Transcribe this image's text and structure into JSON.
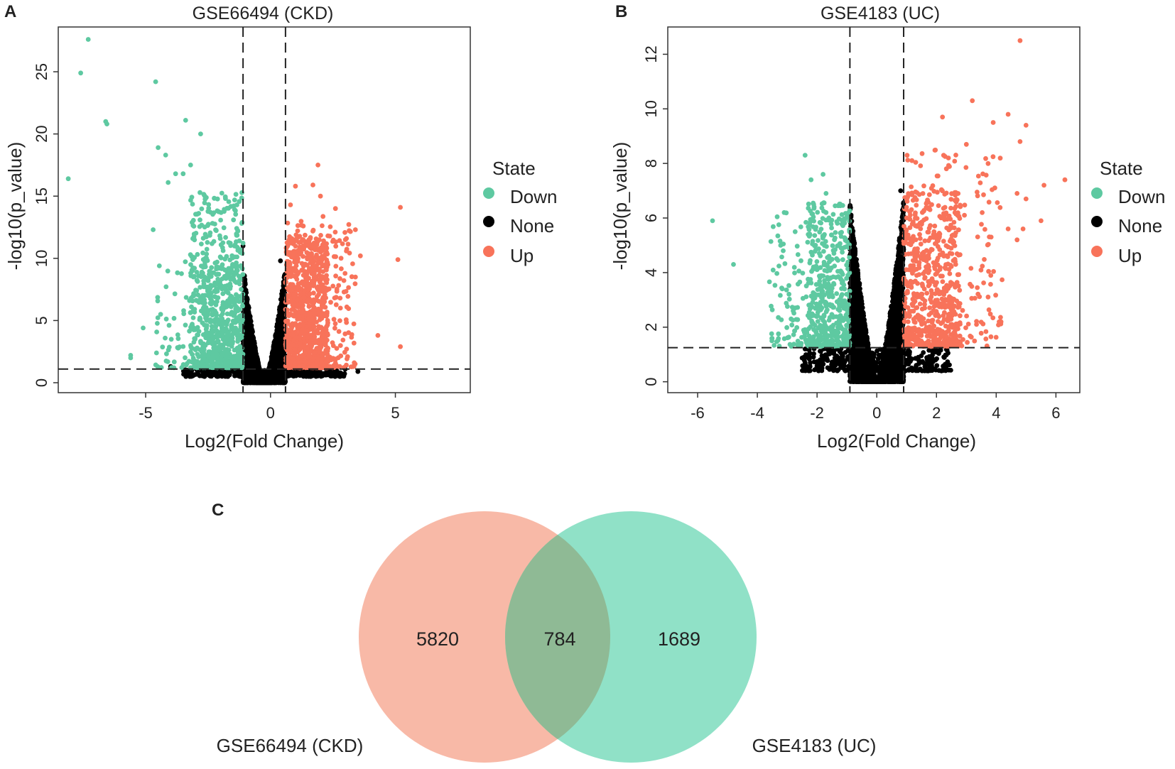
{
  "chart_data": [
    {
      "type": "scatter",
      "panel_label": "A",
      "title": "GSE66494 (CKD)",
      "xlabel": "Log2(Fold Change)",
      "ylabel": "-log10(p_value)",
      "xlim": [
        -8.5,
        8
      ],
      "ylim": [
        -0.8,
        28.6
      ],
      "xticks": [
        -5,
        0,
        5
      ],
      "yticks": [
        0,
        5,
        10,
        15,
        20,
        25
      ],
      "thresholds": {
        "x": [
          -1.1,
          0.6
        ],
        "y": 1.1
      },
      "legend": {
        "title": "State",
        "position": "right",
        "entries": [
          "Down",
          "None",
          "Up"
        ]
      },
      "series": [
        {
          "name": "Down",
          "points": [
            [
              -7.3,
              27.6
            ],
            [
              -7.6,
              24.9
            ],
            [
              -6.6,
              21.0
            ],
            [
              -6.55,
              20.8
            ],
            [
              -4.6,
              24.2
            ],
            [
              -3.4,
              21.1
            ],
            [
              -2.8,
              20.0
            ],
            [
              -4.5,
              18.9
            ],
            [
              -4.2,
              18.3
            ],
            [
              -3.8,
              16.8
            ],
            [
              -3.5,
              16.8
            ],
            [
              -3.2,
              17.5
            ],
            [
              -8.1,
              16.4
            ],
            [
              -4.1,
              16.1
            ],
            [
              -5.1,
              4.4
            ],
            [
              -5.6,
              2.2
            ],
            [
              -5.6,
              2.0
            ],
            [
              -4.4,
              5.5
            ],
            [
              -4.7,
              12.3
            ]
          ],
          "clusters": [
            {
              "x": [
                -3.2,
                -1.1
              ],
              "y": [
                1.2,
                15.3
              ],
              "n": 430
            },
            {
              "x": [
                -4.6,
                -1.1
              ],
              "y": [
                1.2,
                10.5
              ],
              "n": 130
            },
            {
              "x": [
                -2.7,
                -1.1
              ],
              "y": [
                1.2,
                9.5
              ],
              "n": 320
            }
          ]
        },
        {
          "name": "None",
          "points": [
            [
              -4.0,
              1.3
            ],
            [
              -1.1,
              11.0
            ],
            [
              0.4,
              9.8
            ],
            [
              3.5,
              0.9
            ],
            [
              2.8,
              0.8
            ]
          ],
          "clusters": [
            {
              "type": "volcano",
              "x": [
                -1.1,
                0.6
              ],
              "ymax": 9.5,
              "n": 3500
            },
            {
              "x": [
                -3.5,
                3.0
              ],
              "y": [
                0.5,
                1.1
              ],
              "n": 320
            }
          ]
        },
        {
          "name": "Up",
          "points": [
            [
              5.2,
              14.1
            ],
            [
              5.1,
              9.9
            ],
            [
              4.3,
              3.8
            ],
            [
              5.2,
              2.9
            ],
            [
              1.9,
              17.5
            ],
            [
              1.7,
              15.9
            ],
            [
              1.0,
              15.8
            ],
            [
              2.0,
              15.0
            ],
            [
              2.6,
              14.0
            ],
            [
              0.8,
              14.3
            ],
            [
              3.4,
              12.3
            ],
            [
              3.0,
              11.5
            ],
            [
              3.6,
              10.2
            ],
            [
              3.4,
              8.5
            ],
            [
              2.8,
              6.0
            ]
          ],
          "clusters": [
            {
              "x": [
                0.6,
                2.3
              ],
              "y": [
                1.2,
                12.0
              ],
              "n": 850
            },
            {
              "x": [
                0.6,
                3.4
              ],
              "y": [
                1.2,
                13.5
              ],
              "n": 280
            }
          ]
        }
      ]
    },
    {
      "type": "scatter",
      "panel_label": "B",
      "title": "GSE4183 (UC)",
      "xlabel": "Log2(Fold Change)",
      "ylabel": "-log10(p_value)",
      "xlim": [
        -7,
        6.8
      ],
      "ylim": [
        -0.4,
        13.0
      ],
      "xticks": [
        -6,
        -4,
        -2,
        0,
        2,
        4,
        6
      ],
      "yticks": [
        0,
        2,
        4,
        6,
        8,
        10,
        12
      ],
      "thresholds": {
        "x": [
          -0.9,
          0.9
        ],
        "y": 1.25
      },
      "legend": {
        "title": "State",
        "position": "right",
        "entries": [
          "Down",
          "None",
          "Up"
        ]
      },
      "series": [
        {
          "name": "Down",
          "points": [
            [
              -5.5,
              5.9
            ],
            [
              -4.8,
              4.3
            ],
            [
              -2.4,
              8.3
            ],
            [
              -2.2,
              7.4
            ],
            [
              -1.8,
              7.6
            ],
            [
              -1.7,
              6.9
            ],
            [
              -3.1,
              6.2
            ]
          ],
          "clusters": [
            {
              "x": [
                -3.6,
                -0.9
              ],
              "y": [
                1.3,
                6.2
              ],
              "n": 220
            },
            {
              "x": [
                -2.3,
                -0.9
              ],
              "y": [
                1.3,
                6.6
              ],
              "n": 360
            }
          ]
        },
        {
          "name": "None",
          "points": [
            [
              -2.4,
              1.2
            ],
            [
              1.9,
              1.2
            ],
            [
              -0.9,
              6.4
            ],
            [
              0.8,
              7.0
            ]
          ],
          "clusters": [
            {
              "type": "volcano",
              "x": [
                -0.9,
                0.9
              ],
              "ymax": 6.7,
              "n": 4800
            },
            {
              "x": [
                -2.5,
                2.5
              ],
              "y": [
                0.4,
                1.25
              ],
              "n": 380
            }
          ]
        },
        {
          "name": "Up",
          "points": [
            [
              4.8,
              12.5
            ],
            [
              3.2,
              10.3
            ],
            [
              4.4,
              9.8
            ],
            [
              5.0,
              9.4
            ],
            [
              2.2,
              9.7
            ],
            [
              3.9,
              9.5
            ],
            [
              4.8,
              8.8
            ],
            [
              3.0,
              8.7
            ],
            [
              2.4,
              8.2
            ],
            [
              6.3,
              7.4
            ],
            [
              5.6,
              7.2
            ],
            [
              4.7,
              6.9
            ],
            [
              5.0,
              6.7
            ],
            [
              5.5,
              5.9
            ],
            [
              4.4,
              5.6
            ],
            [
              4.7,
              5.2
            ],
            [
              4.1,
              2.2
            ],
            [
              4.9,
              5.6
            ]
          ],
          "clusters": [
            {
              "x": [
                0.9,
                2.8
              ],
              "y": [
                1.3,
                7.0
              ],
              "n": 600
            },
            {
              "x": [
                0.9,
                4.2
              ],
              "y": [
                1.3,
                8.5
              ],
              "n": 200
            }
          ]
        }
      ]
    },
    {
      "type": "venn",
      "panel_label": "C",
      "sets": [
        {
          "label": "GSE66494 (CKD)",
          "only": "5820",
          "color": "#f7ad98"
        },
        {
          "label": "GSE4183 (UC)",
          "only": "1689",
          "color": "#7ddcbd"
        }
      ],
      "intersection": "784"
    }
  ],
  "colors": {
    "Down": "#5ec9a1",
    "None": "#000000",
    "Up": "#f8735a",
    "threshold": "#222222"
  }
}
